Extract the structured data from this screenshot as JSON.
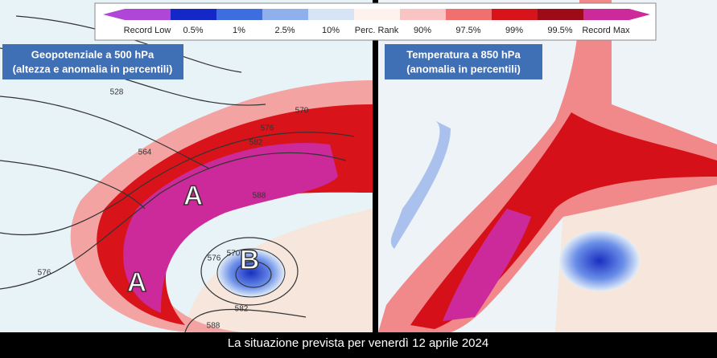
{
  "legend": {
    "labels": [
      "Record Low",
      "0.5%",
      "1%",
      "2.5%",
      "10%",
      "Perc. Rank",
      "90%",
      "97.5%",
      "99%",
      "99.5%",
      "Record Max"
    ]
  },
  "panels": [
    {
      "title": [
        "Geopotenziale a 500 hPa",
        "(altezza e anomalia in percentili)"
      ],
      "markers": [
        "A",
        "A",
        "B"
      ],
      "contour_labels": [
        "528",
        "564",
        "576",
        "570",
        "576",
        "582",
        "588",
        "576",
        "570",
        "582",
        "588"
      ]
    },
    {
      "title": [
        "Temperatura a 850 hPa",
        "(anomalia in percentili)"
      ]
    }
  ],
  "caption": "La situazione prevista per venerdì 12 aprile 2024"
}
